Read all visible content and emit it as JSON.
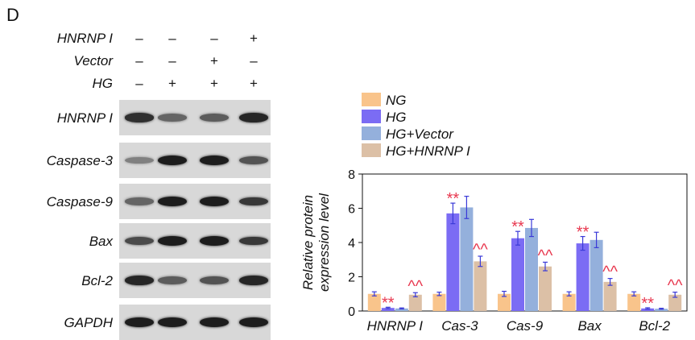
{
  "panel": {
    "label": "D"
  },
  "conditions": [
    {
      "name": "HNRNP I",
      "signs": [
        "–",
        "–",
        "–",
        "+"
      ]
    },
    {
      "name": "Vector",
      "signs": [
        "–",
        "–",
        "+",
        "–"
      ]
    },
    {
      "name": "HG",
      "signs": [
        "–",
        "+",
        "+",
        "+"
      ]
    }
  ],
  "blots": [
    {
      "label": "HNRNP I",
      "intensity": [
        0.85,
        0.55,
        0.6,
        0.9
      ]
    },
    {
      "label": "Caspase-3",
      "intensity": [
        0.4,
        0.95,
        0.95,
        0.65
      ]
    },
    {
      "label": "Caspase-9",
      "intensity": [
        0.55,
        0.95,
        0.95,
        0.8
      ]
    },
    {
      "label": "Bax",
      "intensity": [
        0.7,
        0.95,
        0.95,
        0.8
      ]
    },
    {
      "label": "Bcl-2",
      "intensity": [
        0.9,
        0.6,
        0.65,
        0.9
      ]
    },
    {
      "label": "GAPDH",
      "intensity": [
        0.95,
        0.95,
        0.95,
        0.95
      ]
    }
  ],
  "chart_data": {
    "type": "bar",
    "categories": [
      "HNRNP I",
      "Cas-3",
      "Cas-9",
      "Bax",
      "Bcl-2"
    ],
    "ylabel": [
      "Relative protein",
      "expression level"
    ],
    "ylim": [
      0,
      8
    ],
    "yticks": [
      0,
      2,
      4,
      6,
      8
    ],
    "legend_position": "top-left, above plot",
    "series": [
      {
        "name": "NG",
        "color": "#f9c48b",
        "values": [
          1.0,
          1.0,
          1.0,
          1.0,
          1.0
        ],
        "errors": [
          0.12,
          0.1,
          0.15,
          0.12,
          0.12
        ]
      },
      {
        "name": "HG",
        "color": "#7b6cf4",
        "values": [
          0.18,
          5.7,
          4.25,
          3.95,
          0.15
        ],
        "errors": [
          0.04,
          0.6,
          0.4,
          0.4,
          0.04
        ]
      },
      {
        "name": "HG+Vector",
        "color": "#94b0dc",
        "values": [
          0.15,
          6.05,
          4.85,
          4.15,
          0.13
        ],
        "errors": [
          0.03,
          0.65,
          0.5,
          0.45,
          0.03
        ]
      },
      {
        "name": "HG+HNRNP I",
        "color": "#dcc0a6",
        "values": [
          0.95,
          2.9,
          2.6,
          1.7,
          0.95
        ],
        "errors": [
          0.12,
          0.3,
          0.25,
          0.2,
          0.15
        ]
      }
    ],
    "annotations": [
      {
        "category": 0,
        "series": 1,
        "text": "**"
      },
      {
        "category": 1,
        "series": 1,
        "text": "**"
      },
      {
        "category": 2,
        "series": 1,
        "text": "**"
      },
      {
        "category": 3,
        "series": 1,
        "text": "**"
      },
      {
        "category": 4,
        "series": 1,
        "text": "**"
      },
      {
        "category": 0,
        "series": 3,
        "text": "^^"
      },
      {
        "category": 1,
        "series": 3,
        "text": "^^"
      },
      {
        "category": 2,
        "series": 3,
        "text": "^^"
      },
      {
        "category": 3,
        "series": 3,
        "text": "^^"
      },
      {
        "category": 4,
        "series": 3,
        "text": "^^"
      }
    ],
    "annotation_color": "#e8384f",
    "error_bar_color": "#3a3ad8"
  }
}
